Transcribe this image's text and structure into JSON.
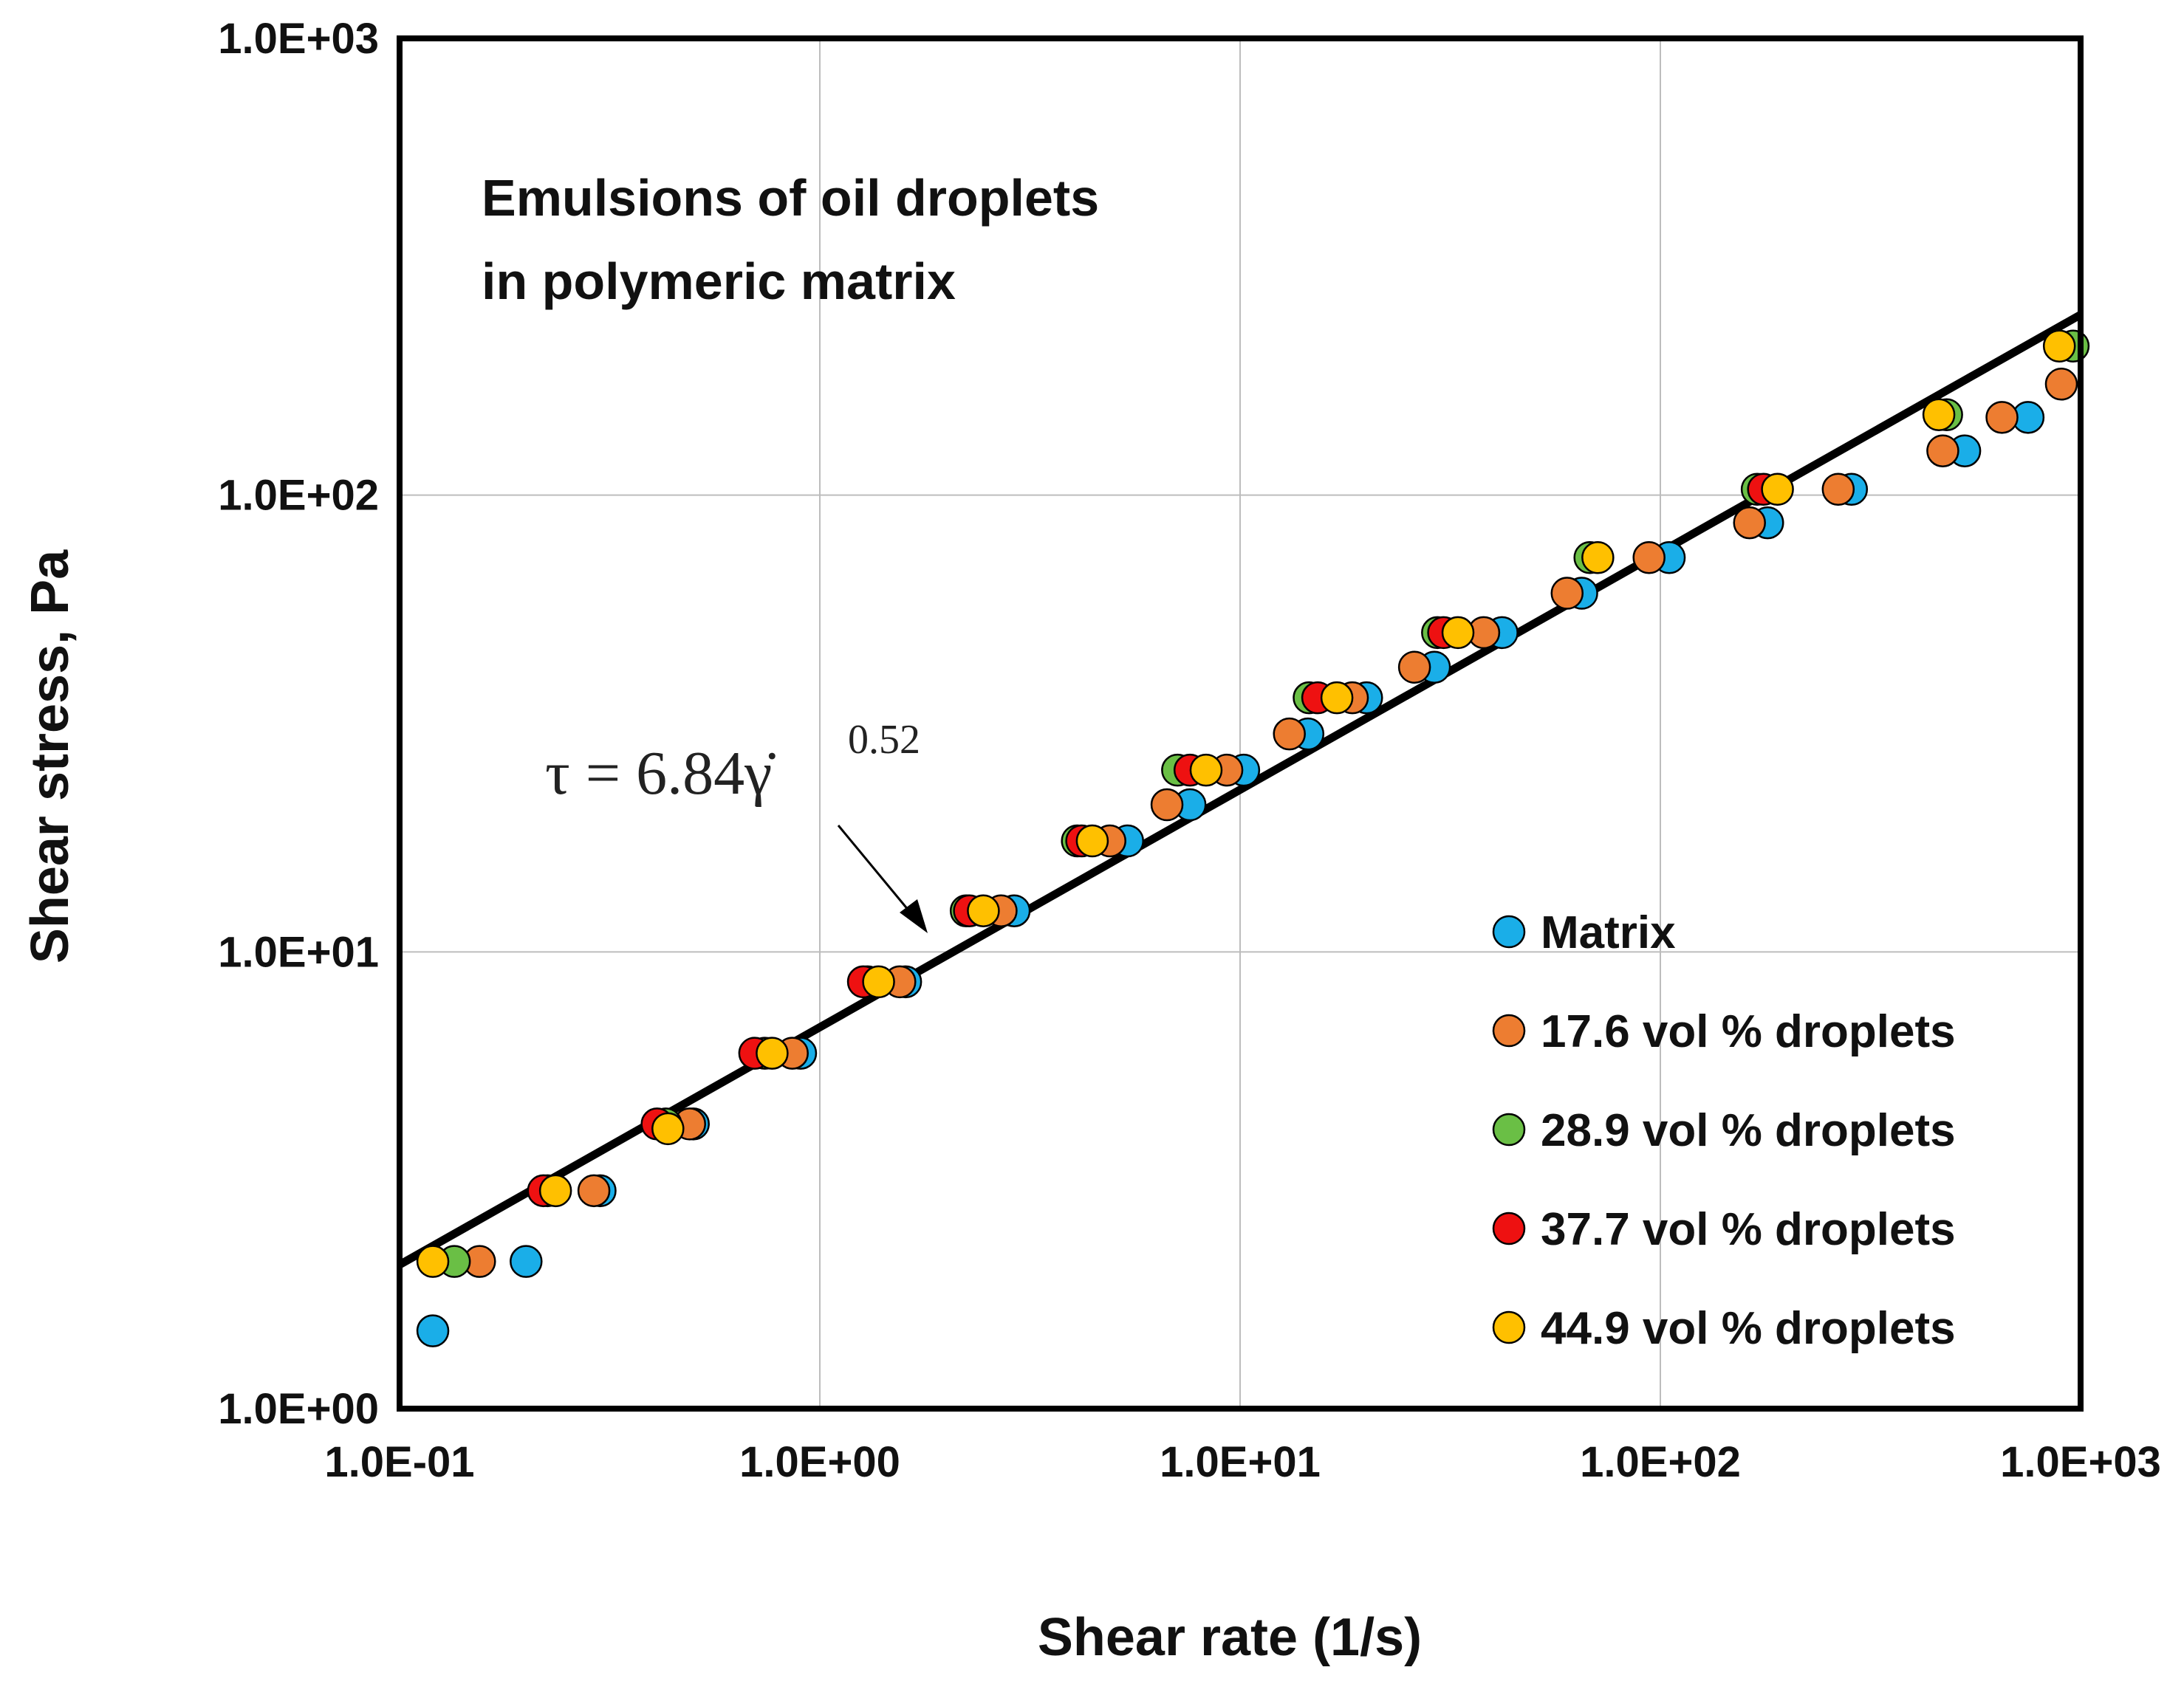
{
  "chart_data": {
    "type": "scatter",
    "title": "",
    "xlabel": "Shear rate (1/s)",
    "ylabel": "Shear stress, Pa",
    "xscale": "log",
    "yscale": "log",
    "xlim": [
      0.1,
      1000
    ],
    "ylim": [
      1,
      1000
    ],
    "x_ticks": [
      "1.0E-01",
      "1.0E+00",
      "1.0E+01",
      "1.0E+02",
      "1.0E+03"
    ],
    "y_ticks": [
      "1.0E+00",
      "1.0E+01",
      "1.0E+02",
      "1.0E+03"
    ],
    "grid": true,
    "annotation": {
      "line1": "Emulsions of oil droplets",
      "line2": "in polymeric matrix"
    },
    "fit": {
      "label": "τ = 6.84γ̇",
      "exponent_label": "0.52",
      "coefficient": 6.84,
      "exponent": 0.52,
      "color": "#000000"
    },
    "legend_position": "bottom-right",
    "series": [
      {
        "name": "Matrix",
        "color": "#1aaee8",
        "points": [
          [
            0.12,
            1.48
          ],
          [
            0.2,
            2.1
          ],
          [
            0.3,
            3.0
          ],
          [
            0.5,
            4.2
          ],
          [
            0.9,
            6.0
          ],
          [
            1.6,
            8.6
          ],
          [
            2.9,
            12.3
          ],
          [
            5.4,
            17.5
          ],
          [
            7.6,
            21
          ],
          [
            10.2,
            25
          ],
          [
            14.5,
            30
          ],
          [
            20,
            36
          ],
          [
            29,
            42
          ],
          [
            42,
            50
          ],
          [
            65,
            61
          ],
          [
            105,
            73
          ],
          [
            180,
            87
          ],
          [
            285,
            103
          ],
          [
            530,
            125
          ],
          [
            750,
            148
          ]
        ]
      },
      {
        "name": "17.6 vol % droplets",
        "color": "#ed7d31",
        "points": [
          [
            0.155,
            2.1
          ],
          [
            0.29,
            3.0
          ],
          [
            0.49,
            4.2
          ],
          [
            0.86,
            6.0
          ],
          [
            1.55,
            8.6
          ],
          [
            2.7,
            12.3
          ],
          [
            4.9,
            17.5
          ],
          [
            6.7,
            21
          ],
          [
            9.3,
            25
          ],
          [
            13.1,
            30
          ],
          [
            18.5,
            36
          ],
          [
            26,
            42
          ],
          [
            38,
            50
          ],
          [
            60,
            61
          ],
          [
            94,
            73
          ],
          [
            163,
            87
          ],
          [
            265,
            103
          ],
          [
            470,
            125
          ],
          [
            650,
            148
          ],
          [
            900,
            175
          ]
        ]
      },
      {
        "name": "28.9 vol % droplets",
        "color": "#6abf45",
        "points": [
          [
            0.135,
            2.1
          ],
          [
            0.225,
            3.0
          ],
          [
            0.43,
            4.2
          ],
          [
            0.74,
            6.0
          ],
          [
            1.3,
            8.6
          ],
          [
            2.23,
            12.3
          ],
          [
            4.1,
            17.5
          ],
          [
            7.1,
            25
          ],
          [
            14.6,
            36
          ],
          [
            29.5,
            50
          ],
          [
            68,
            73
          ],
          [
            170,
            103
          ],
          [
            480,
            150
          ],
          [
            960,
            212
          ]
        ]
      },
      {
        "name": "37.7 vol % droplets",
        "color": "#ee1111",
        "points": [
          [
            0.22,
            3.0
          ],
          [
            0.41,
            4.2
          ],
          [
            0.7,
            6.0
          ],
          [
            1.27,
            8.6
          ],
          [
            2.27,
            12.3
          ],
          [
            4.2,
            17.5
          ],
          [
            7.6,
            25
          ],
          [
            15.3,
            36
          ],
          [
            30.5,
            50
          ],
          [
            176,
            103
          ]
        ]
      },
      {
        "name": "44.9 vol % droplets",
        "color": "#ffc000",
        "points": [
          [
            0.12,
            2.1
          ],
          [
            0.235,
            3.0
          ],
          [
            0.435,
            4.1
          ],
          [
            0.77,
            6.0
          ],
          [
            1.38,
            8.6
          ],
          [
            2.45,
            12.3
          ],
          [
            4.45,
            17.5
          ],
          [
            8.3,
            25
          ],
          [
            17,
            36
          ],
          [
            33,
            50
          ],
          [
            71,
            73
          ],
          [
            190,
            103
          ],
          [
            460,
            150
          ],
          [
            890,
            212
          ]
        ]
      }
    ]
  }
}
